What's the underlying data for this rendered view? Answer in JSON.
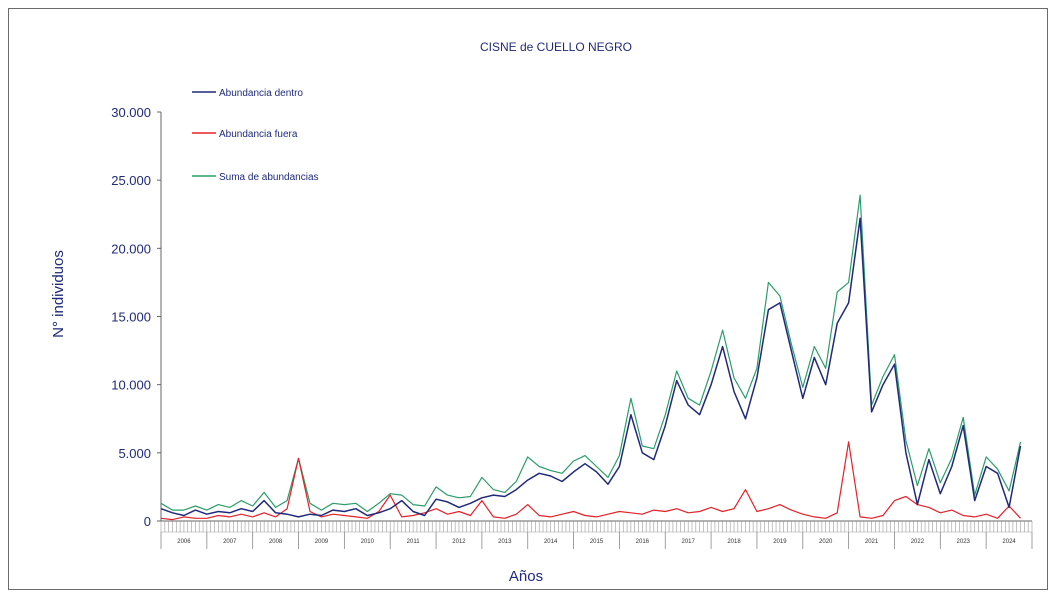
{
  "chart_data": {
    "type": "line",
    "title": "CISNE de CUELLO NEGRO",
    "xlabel": "Años",
    "ylabel": "N° individuos",
    "ylim": [
      0,
      30000
    ],
    "yticks": [
      "0",
      "5.000",
      "10.000",
      "15.000",
      "20.000",
      "25.000",
      "30.000"
    ],
    "ytick_values": [
      0,
      5000,
      10000,
      15000,
      20000,
      25000,
      30000
    ],
    "categories": [
      "2006",
      "2007",
      "2008",
      "2009",
      "2010",
      "2011",
      "2012",
      "2013",
      "2014",
      "2015",
      "2016",
      "2017",
      "2018",
      "2019",
      "2020",
      "2021",
      "2022",
      "2023",
      "2024"
    ],
    "x": [
      2006.0,
      2006.25,
      2006.5,
      2006.75,
      2007.0,
      2007.25,
      2007.5,
      2007.75,
      2008.0,
      2008.25,
      2008.5,
      2008.75,
      2009.0,
      2009.25,
      2009.5,
      2009.75,
      2010.0,
      2010.25,
      2010.5,
      2010.75,
      2011.0,
      2011.25,
      2011.5,
      2011.75,
      2012.0,
      2012.25,
      2012.5,
      2012.75,
      2013.0,
      2013.25,
      2013.5,
      2013.75,
      2014.0,
      2014.25,
      2014.5,
      2014.75,
      2015.0,
      2015.25,
      2015.5,
      2015.75,
      2016.0,
      2016.25,
      2016.5,
      2016.75,
      2017.0,
      2017.25,
      2017.5,
      2017.75,
      2018.0,
      2018.25,
      2018.5,
      2018.75,
      2019.0,
      2019.25,
      2019.5,
      2019.75,
      2020.0,
      2020.25,
      2020.5,
      2020.75,
      2021.0,
      2021.25,
      2021.5,
      2021.75,
      2022.0,
      2022.25,
      2022.5,
      2022.75,
      2023.0,
      2023.25,
      2023.5,
      2023.75,
      2024.0,
      2024.25,
      2024.5,
      2024.75
    ],
    "legend_placement": "top-left",
    "grid": false,
    "series": [
      {
        "name": "Abundancia dentro",
        "color": "#1f2a7a",
        "values": [
          900,
          600,
          400,
          800,
          500,
          700,
          600,
          900,
          700,
          1500,
          600,
          500,
          300,
          500,
          400,
          800,
          700,
          900,
          400,
          600,
          900,
          1500,
          700,
          400,
          1600,
          1400,
          1000,
          1300,
          1700,
          1900,
          1800,
          2300,
          3000,
          3500,
          3300,
          2900,
          3600,
          4200,
          3600,
          2700,
          4000,
          7800,
          5000,
          4500,
          7000,
          10300,
          8500,
          7800,
          10000,
          12800,
          9500,
          7500,
          10500,
          15500,
          16000,
          12500,
          9000,
          12000,
          10000,
          14500,
          16000,
          22200,
          8000,
          10000,
          11500,
          5000,
          1200,
          4500,
          2000,
          4000,
          7000,
          1500,
          4000,
          3500,
          1000,
          5500
        ]
      },
      {
        "name": "Abundancia fuera",
        "color": "#e8202a",
        "values": [
          200,
          100,
          300,
          200,
          200,
          400,
          300,
          500,
          300,
          600,
          300,
          900,
          4600,
          700,
          300,
          500,
          400,
          300,
          200,
          700,
          1900,
          300,
          400,
          600,
          900,
          500,
          700,
          400,
          1500,
          300,
          200,
          500,
          1200,
          400,
          300,
          500,
          700,
          400,
          300,
          500,
          700,
          600,
          500,
          800,
          700,
          900,
          600,
          700,
          1000,
          700,
          900,
          2300,
          700,
          900,
          1200,
          800,
          500,
          300,
          200,
          600,
          5800,
          300,
          200,
          400,
          1500,
          1800,
          1200,
          1000,
          600,
          800,
          400,
          300,
          500,
          200,
          1100,
          200
        ]
      },
      {
        "name": "Suma de abundancias",
        "color": "#2a9d6a",
        "values": [
          1300,
          800,
          800,
          1100,
          800,
          1200,
          1000,
          1500,
          1100,
          2100,
          1000,
          1500,
          4600,
          1300,
          800,
          1300,
          1200,
          1300,
          700,
          1300,
          2000,
          1900,
          1200,
          1100,
          2500,
          1900,
          1700,
          1800,
          3200,
          2300,
          2100,
          2900,
          4700,
          4000,
          3700,
          3500,
          4400,
          4800,
          4000,
          3200,
          4800,
          9000,
          5500,
          5300,
          7800,
          11000,
          9000,
          8500,
          11000,
          14000,
          10500,
          9000,
          11200,
          17500,
          16500,
          13000,
          9800,
          12800,
          11200,
          16800,
          17500,
          23900,
          8500,
          10600,
          12200,
          5900,
          2600,
          5300,
          2800,
          4600,
          7600,
          1900,
          4700,
          3800,
          2200,
          5800
        ]
      }
    ]
  }
}
